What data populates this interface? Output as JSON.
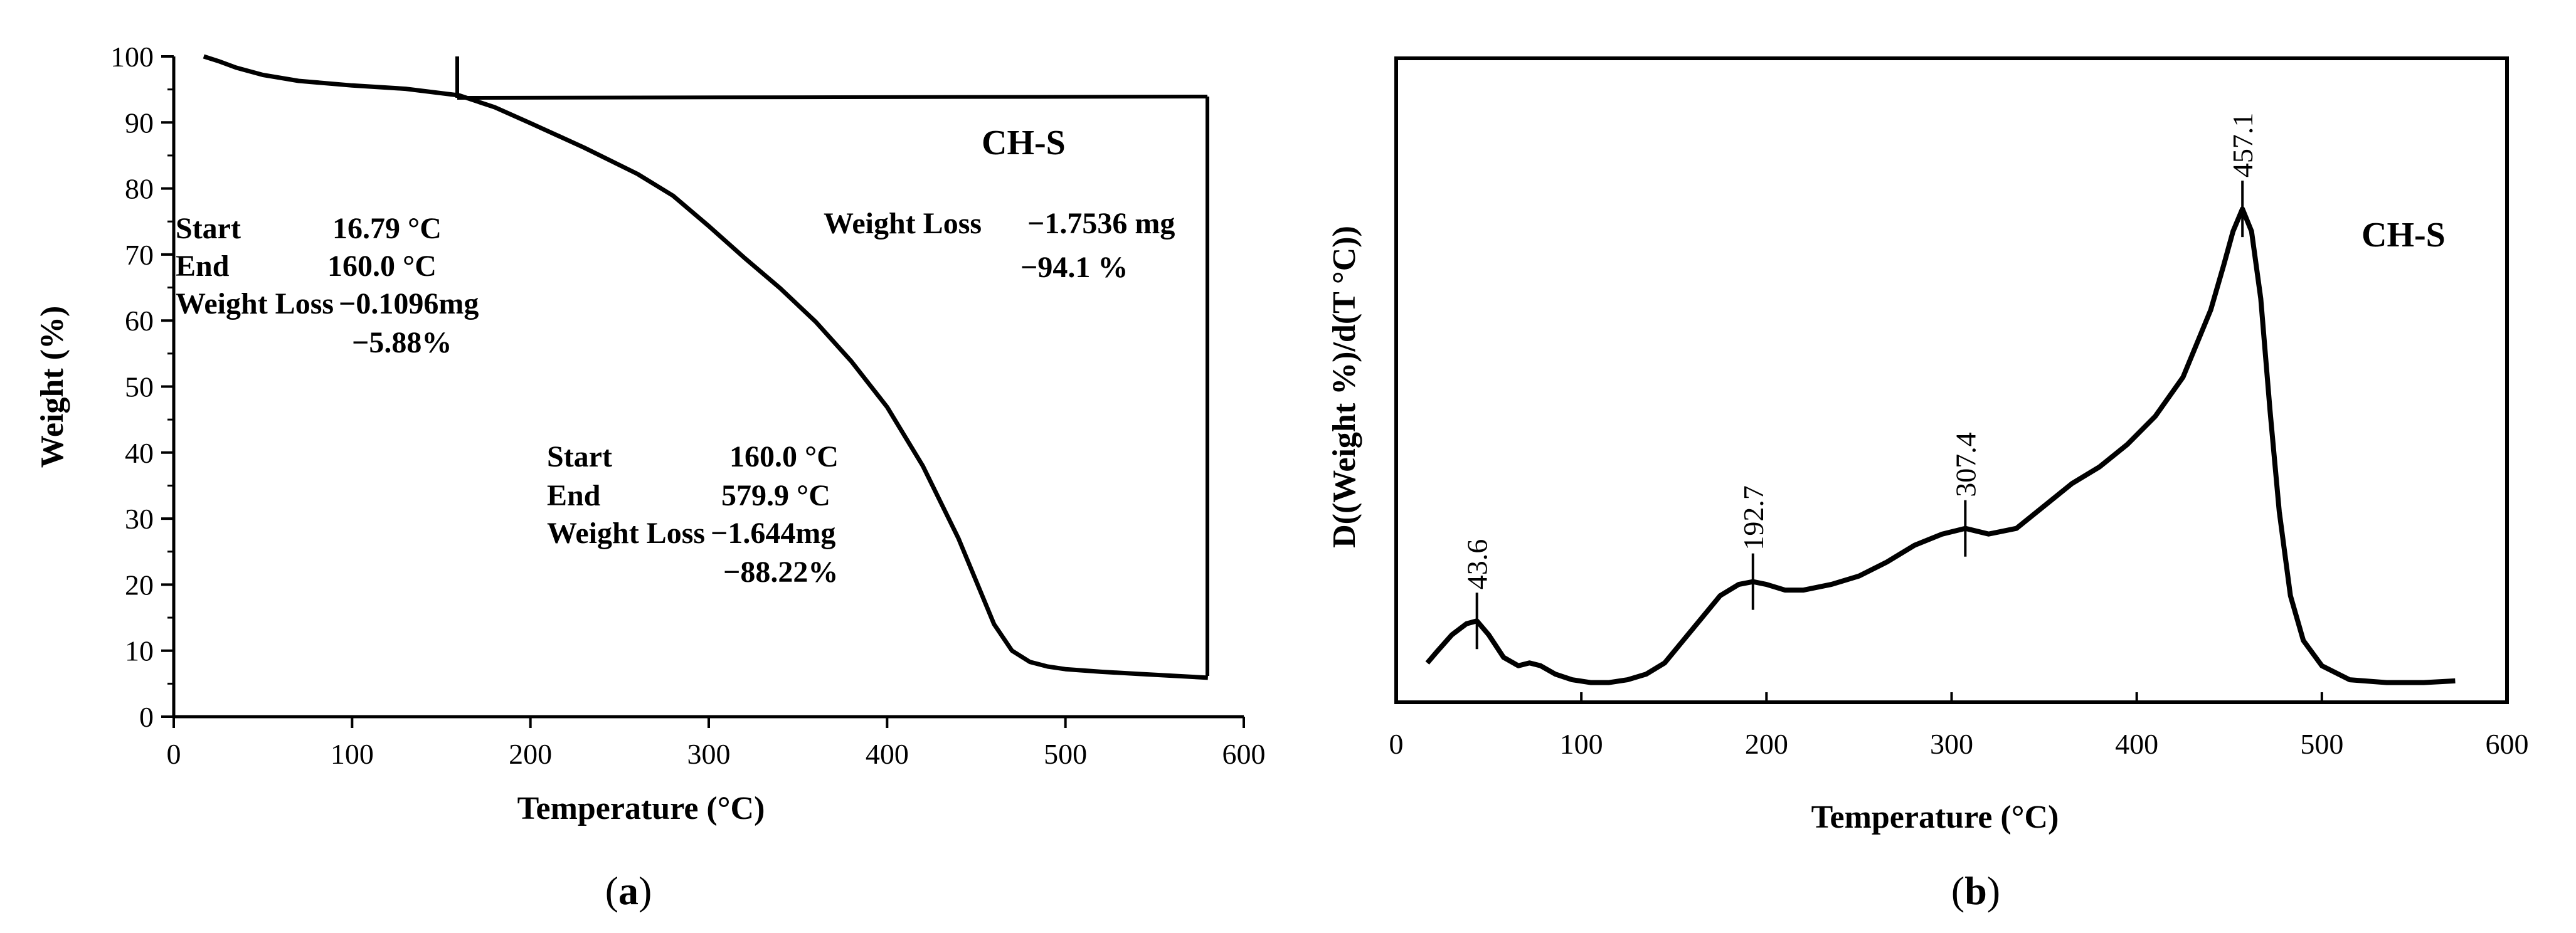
{
  "chart_data": [
    {
      "panel": "a",
      "type": "line",
      "xlabel": "Temperature (°C)",
      "ylabel": "Weight (%)",
      "xlim": [
        0,
        600
      ],
      "ylim": [
        0,
        100
      ],
      "x_ticks": [
        0,
        100,
        200,
        300,
        400,
        500,
        600
      ],
      "y_ticks": [
        0,
        10,
        20,
        30,
        40,
        50,
        60,
        70,
        80,
        90,
        100
      ],
      "series": [
        {
          "name": "CH-S",
          "x": [
            16.8,
            25,
            35,
            50,
            70,
            100,
            130,
            160,
            180,
            200,
            230,
            260,
            280,
            300,
            320,
            340,
            360,
            380,
            400,
            420,
            440,
            450,
            460,
            470,
            480,
            490,
            500,
            520,
            540,
            560,
            579.9
          ],
          "y": [
            100,
            99.3,
            98.3,
            97.2,
            96.3,
            95.6,
            95.1,
            94.1,
            92.3,
            89.9,
            86.2,
            82.2,
            78.9,
            74.3,
            69.5,
            64.9,
            59.8,
            53.8,
            46.9,
            38.0,
            27.0,
            20.5,
            14.0,
            10.0,
            8.3,
            7.6,
            7.2,
            6.8,
            6.5,
            6.2,
            5.9
          ]
        }
      ],
      "sample_label": "CH-S",
      "annotations": {
        "step1": {
          "start_label": "Start",
          "start_value": "16.79 °C",
          "end_label": "End",
          "end_value": "160.0 °C",
          "loss_label": "Weight Loss",
          "loss_mg": "−0.1096mg",
          "loss_pct": "−5.88%"
        },
        "step2": {
          "start_label": "Start",
          "start_value": "160.0 °C",
          "end_label": "End",
          "end_value": "579.9 °C",
          "loss_label": "Weight Loss",
          "loss_mg": "−1.644mg",
          "loss_pct": "−88.22%"
        },
        "total": {
          "loss_label": "Weight Loss",
          "loss_mg": "−1.7536 mg",
          "loss_pct": "−94.1 %"
        }
      },
      "caption_open": "(",
      "caption_letter": "a",
      "caption_close": ")"
    },
    {
      "panel": "b",
      "type": "line",
      "xlabel": "Temperature (°C)",
      "ylabel": "D((Weight %)/d(T °C))",
      "xlim": [
        0,
        600
      ],
      "ylim": [
        0,
        1
      ],
      "x_ticks": [
        0,
        100,
        200,
        300,
        400,
        500,
        600
      ],
      "series": [
        {
          "name": "CH-S",
          "x": [
            16.8,
            22,
            30,
            38,
            43.6,
            50,
            58,
            66,
            72,
            78,
            86,
            95,
            105,
            115,
            125,
            135,
            145,
            155,
            165,
            175,
            185,
            192.7,
            200,
            210,
            220,
            235,
            250,
            265,
            280,
            295,
            307.4,
            320,
            335,
            350,
            365,
            380,
            395,
            410,
            425,
            440,
            447,
            452,
            457.1,
            462,
            467,
            472,
            477,
            483,
            490,
            500,
            515,
            535,
            555,
            572
          ],
          "y": [
            0.05,
            0.07,
            0.1,
            0.12,
            0.125,
            0.1,
            0.06,
            0.045,
            0.05,
            0.045,
            0.03,
            0.02,
            0.015,
            0.015,
            0.02,
            0.03,
            0.05,
            0.09,
            0.13,
            0.17,
            0.19,
            0.195,
            0.19,
            0.18,
            0.18,
            0.19,
            0.205,
            0.23,
            0.26,
            0.28,
            0.29,
            0.28,
            0.29,
            0.33,
            0.37,
            0.4,
            0.44,
            0.49,
            0.56,
            0.68,
            0.76,
            0.82,
            0.86,
            0.82,
            0.7,
            0.5,
            0.32,
            0.17,
            0.09,
            0.045,
            0.02,
            0.015,
            0.015,
            0.018
          ]
        }
      ],
      "sample_label": "CH-S",
      "peak_labels": [
        {
          "x": 43.6,
          "text": "43.6"
        },
        {
          "x": 192.7,
          "text": "192.7"
        },
        {
          "x": 307.4,
          "text": "307.4"
        },
        {
          "x": 457.1,
          "text": "457.1"
        }
      ],
      "caption_open": "(",
      "caption_letter": "b",
      "caption_close": ")"
    }
  ]
}
